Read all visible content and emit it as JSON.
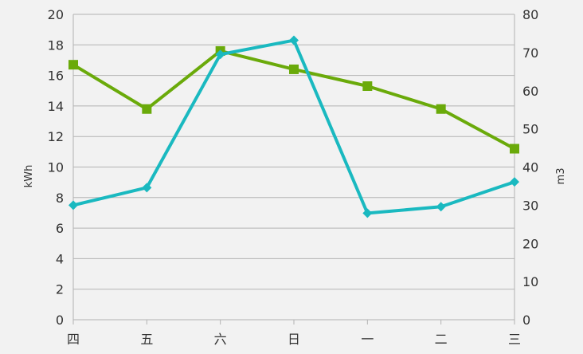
{
  "chart_data": {
    "type": "line",
    "categories": [
      "四",
      "五",
      "六",
      "日",
      "一",
      "二",
      "三"
    ],
    "left_axis": {
      "label": "kWh",
      "ylim": [
        0,
        20
      ],
      "ticks": [
        0,
        2,
        4,
        6,
        8,
        10,
        12,
        14,
        16,
        18,
        20
      ]
    },
    "right_axis": {
      "label": "m3",
      "ylim": [
        0,
        80
      ],
      "ticks": [
        0,
        10,
        20,
        30,
        40,
        50,
        60,
        70,
        80
      ]
    },
    "grid": true,
    "legend": "none",
    "series": [
      {
        "axis": "left",
        "color": "#6aaa0a",
        "marker": "square",
        "values": [
          16.7,
          13.8,
          17.6,
          16.4,
          15.3,
          13.8,
          11.2
        ]
      },
      {
        "axis": "right",
        "color": "#1ab9c0",
        "marker": "diamond",
        "values": [
          30,
          34.6,
          69.5,
          73.2,
          27.9,
          29.6,
          36.1
        ]
      }
    ]
  }
}
